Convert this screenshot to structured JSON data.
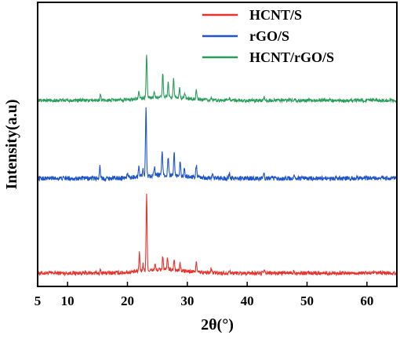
{
  "chart_data": {
    "type": "line",
    "xlabel": "2θ(°)",
    "ylabel": "Intensity(a.u)",
    "xlim": [
      5,
      65
    ],
    "x_ticks": [
      5,
      10,
      20,
      30,
      40,
      50,
      60
    ],
    "y_ticks_shown": false,
    "grid": false,
    "legend_position": "top-right",
    "series": [
      {
        "name": "HCNT/S",
        "color": "#e8322d",
        "offset": 0,
        "noise": 0.7,
        "peaks": [
          {
            "x": 15.5,
            "h": 1.0
          },
          {
            "x": 22.0,
            "h": 6.5
          },
          {
            "x": 22.6,
            "h": 2.5
          },
          {
            "x": 23.2,
            "h": 27.0
          },
          {
            "x": 24.6,
            "h": 2.0
          },
          {
            "x": 25.9,
            "h": 5.0
          },
          {
            "x": 26.7,
            "h": 4.5
          },
          {
            "x": 27.8,
            "h": 4.0
          },
          {
            "x": 28.8,
            "h": 2.5
          },
          {
            "x": 31.5,
            "h": 4.0
          },
          {
            "x": 34.0,
            "h": 1.5
          },
          {
            "x": 37.0,
            "h": 1.0
          },
          {
            "x": 42.8,
            "h": 1.0
          },
          {
            "x": 47.8,
            "h": 1.0
          }
        ]
      },
      {
        "name": "rGO/S",
        "color": "#1f55c8",
        "offset": 34,
        "noise": 0.8,
        "peaks": [
          {
            "x": 15.4,
            "h": 4.5
          },
          {
            "x": 20.0,
            "h": 1.5
          },
          {
            "x": 21.9,
            "h": 4.0
          },
          {
            "x": 22.6,
            "h": 3.0
          },
          {
            "x": 23.1,
            "h": 25.0
          },
          {
            "x": 24.5,
            "h": 3.0
          },
          {
            "x": 25.8,
            "h": 9.0
          },
          {
            "x": 26.8,
            "h": 6.5
          },
          {
            "x": 27.8,
            "h": 9.0
          },
          {
            "x": 28.8,
            "h": 5.0
          },
          {
            "x": 29.5,
            "h": 3.0
          },
          {
            "x": 31.5,
            "h": 4.5
          },
          {
            "x": 34.2,
            "h": 2.0
          },
          {
            "x": 37.0,
            "h": 1.5
          },
          {
            "x": 42.8,
            "h": 1.5
          },
          {
            "x": 47.8,
            "h": 1.0
          }
        ]
      },
      {
        "name": "HCNT/rGO/S",
        "color": "#2a9d5c",
        "offset": 62,
        "noise": 0.6,
        "peaks": [
          {
            "x": 15.5,
            "h": 2.0
          },
          {
            "x": 21.9,
            "h": 2.5
          },
          {
            "x": 23.2,
            "h": 16.0
          },
          {
            "x": 24.5,
            "h": 2.0
          },
          {
            "x": 25.9,
            "h": 8.5
          },
          {
            "x": 26.8,
            "h": 5.5
          },
          {
            "x": 27.7,
            "h": 6.5
          },
          {
            "x": 28.7,
            "h": 3.5
          },
          {
            "x": 29.6,
            "h": 2.0
          },
          {
            "x": 31.5,
            "h": 3.5
          },
          {
            "x": 34.0,
            "h": 1.2
          },
          {
            "x": 37.0,
            "h": 1.0
          },
          {
            "x": 42.8,
            "h": 1.0
          }
        ]
      }
    ]
  }
}
